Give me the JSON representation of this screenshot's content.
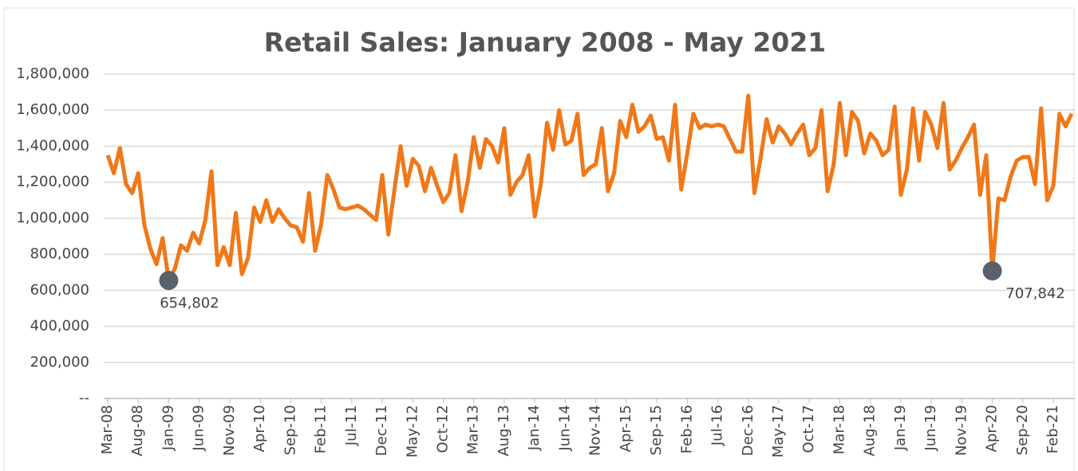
{
  "chart_data": {
    "type": "line",
    "title": "Retail Sales: January 2008 - May 2021",
    "categories": [
      "Mar-08",
      null,
      null,
      null,
      null,
      "Aug-08",
      null,
      null,
      null,
      null,
      "Jan-09",
      null,
      null,
      null,
      null,
      "Jun-09",
      null,
      null,
      null,
      null,
      "Nov-09",
      null,
      null,
      null,
      null,
      "Apr-10",
      null,
      null,
      null,
      null,
      "Sep-10",
      null,
      null,
      null,
      null,
      "Feb-11",
      null,
      null,
      null,
      null,
      "Jul-11",
      null,
      null,
      null,
      null,
      "Dec-11",
      null,
      null,
      null,
      null,
      "May-12",
      null,
      null,
      null,
      null,
      "Oct-12",
      null,
      null,
      null,
      null,
      "Mar-13",
      null,
      null,
      null,
      null,
      "Aug-13",
      null,
      null,
      null,
      null,
      "Jan-14",
      null,
      null,
      null,
      null,
      "Jun-14",
      null,
      null,
      null,
      null,
      "Nov-14",
      null,
      null,
      null,
      null,
      "Apr-15",
      null,
      null,
      null,
      null,
      "Sep-15",
      null,
      null,
      null,
      null,
      "Feb-16",
      null,
      null,
      null,
      null,
      "Jul-16",
      null,
      null,
      null,
      null,
      "Dec-16",
      null,
      null,
      null,
      null,
      "May-17",
      null,
      null,
      null,
      null,
      "Oct-17",
      null,
      null,
      null,
      null,
      "Mar-18",
      null,
      null,
      null,
      null,
      "Aug-18",
      null,
      null,
      null,
      null,
      "Jan-19",
      null,
      null,
      null,
      null,
      "Jun-19",
      null,
      null,
      null,
      null,
      "Nov-19",
      null,
      null,
      null,
      null,
      "Apr-20",
      null,
      null,
      null,
      null,
      "Sep-20",
      null,
      null,
      null,
      null,
      "Feb-21",
      null,
      null,
      null
    ],
    "series": [
      {
        "color": "#f07818",
        "values": [
          1350000,
          1250000,
          1390000,
          1190000,
          1140000,
          1250000,
          965000,
          830000,
          745000,
          890000,
          654802,
          720000,
          850000,
          820000,
          920000,
          860000,
          990000,
          1260000,
          740000,
          840000,
          740000,
          1030000,
          690000,
          780000,
          1060000,
          980000,
          1100000,
          980000,
          1050000,
          1000000,
          960000,
          950000,
          870000,
          1140000,
          820000,
          970000,
          1240000,
          1160000,
          1060000,
          1050000,
          1060000,
          1070000,
          1050000,
          1020000,
          990000,
          1240000,
          910000,
          1160000,
          1400000,
          1180000,
          1330000,
          1290000,
          1150000,
          1280000,
          1180000,
          1090000,
          1140000,
          1350000,
          1040000,
          1200000,
          1450000,
          1280000,
          1440000,
          1400000,
          1310000,
          1500000,
          1130000,
          1200000,
          1240000,
          1350000,
          1010000,
          1190000,
          1530000,
          1380000,
          1600000,
          1410000,
          1430000,
          1580000,
          1240000,
          1280000,
          1300000,
          1500000,
          1150000,
          1250000,
          1540000,
          1450000,
          1630000,
          1480000,
          1510000,
          1570000,
          1440000,
          1450000,
          1320000,
          1630000,
          1160000,
          1360000,
          1580000,
          1500000,
          1520000,
          1510000,
          1520000,
          1510000,
          1440000,
          1370000,
          1370000,
          1680000,
          1140000,
          1330000,
          1550000,
          1420000,
          1510000,
          1470000,
          1410000,
          1470000,
          1520000,
          1350000,
          1390000,
          1600000,
          1150000,
          1300000,
          1640000,
          1350000,
          1590000,
          1540000,
          1360000,
          1470000,
          1430000,
          1350000,
          1380000,
          1620000,
          1130000,
          1270000,
          1610000,
          1320000,
          1590000,
          1520000,
          1390000,
          1640000,
          1270000,
          1320000,
          1390000,
          1450000,
          1520000,
          1130000,
          1350000,
          707842,
          1110000,
          1100000,
          1230000,
          1320000,
          1340000,
          1340000,
          1190000,
          1610000,
          1100000,
          1180000,
          1580000,
          1510000,
          1580000
        ],
        "value_labels": [
          null,
          null,
          null,
          null,
          null,
          null,
          null,
          null,
          null,
          null,
          "654,802",
          null,
          null,
          null,
          null,
          null,
          null,
          null,
          null,
          null,
          null,
          null,
          null,
          null,
          null,
          null,
          null,
          null,
          null,
          null,
          null,
          null,
          null,
          null,
          null,
          null,
          null,
          null,
          null,
          null,
          null,
          null,
          null,
          null,
          null,
          null,
          null,
          null,
          null,
          null,
          null,
          null,
          null,
          null,
          null,
          null,
          null,
          null,
          null,
          null,
          null,
          null,
          null,
          null,
          null,
          null,
          null,
          null,
          null,
          null,
          null,
          null,
          null,
          null,
          null,
          null,
          null,
          null,
          null,
          null,
          null,
          null,
          null,
          null,
          null,
          null,
          null,
          null,
          null,
          null,
          null,
          null,
          null,
          null,
          null,
          null,
          null,
          null,
          null,
          null,
          null,
          null,
          null,
          null,
          null,
          null,
          null,
          null,
          null,
          null,
          null,
          null,
          null,
          null,
          null,
          null,
          null,
          null,
          null,
          null,
          null,
          null,
          null,
          null,
          null,
          null,
          null,
          null,
          null,
          null,
          null,
          null,
          null,
          null,
          null,
          null,
          null,
          null,
          null,
          null,
          null,
          null,
          null,
          null,
          null,
          "707,842",
          null,
          null,
          null,
          null,
          null,
          null,
          null,
          null,
          null,
          null,
          null,
          null,
          null
        ]
      }
    ],
    "marker_color": "#59626b",
    "ylim": [
      0,
      1800000
    ],
    "yticks": [
      {
        "value": 0,
        "label": "--"
      },
      {
        "value": 200000,
        "label": "200,000"
      },
      {
        "value": 400000,
        "label": "400,000"
      },
      {
        "value": 600000,
        "label": "600,000"
      },
      {
        "value": 800000,
        "label": "800,000"
      },
      {
        "value": 1000000,
        "label": "1,000,000"
      },
      {
        "value": 1200000,
        "label": "1,200,000"
      },
      {
        "value": 1400000,
        "label": "1,400,000"
      },
      {
        "value": 1600000,
        "label": "1,600,000"
      },
      {
        "value": 1800000,
        "label": "1,800,000"
      }
    ],
    "grid": true
  }
}
